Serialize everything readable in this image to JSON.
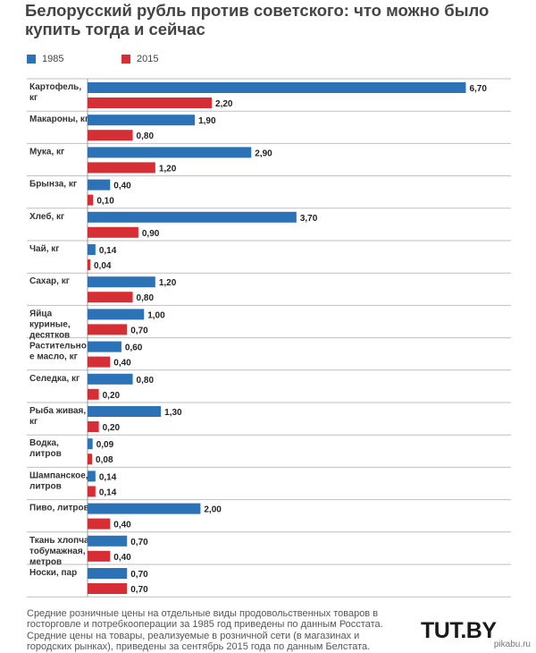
{
  "title": "Белорусский рубль против советского: что можно было купить тогда и сейчас",
  "legend": [
    {
      "label": "1985",
      "color": "#2b72b7"
    },
    {
      "label": "2015",
      "color": "#d62e35"
    }
  ],
  "chart_data": {
    "type": "bar",
    "orientation": "horizontal",
    "title": "Белорусский рубль против советского: что можно было купить тогда и сейчас",
    "categories": [
      [
        "Картофель,",
        "кг"
      ],
      [
        "Макароны, кг"
      ],
      [
        "Мука, кг"
      ],
      [
        "Брынза, кг"
      ],
      [
        "Хлеб, кг"
      ],
      [
        "Чай, кг"
      ],
      [
        "Сахар, кг"
      ],
      [
        "Яйца",
        "куриные,",
        "десятков"
      ],
      [
        "Растительно",
        "е масло, кг"
      ],
      [
        "Селедка, кг"
      ],
      [
        "Рыба живая,",
        "кг"
      ],
      [
        "Водка,",
        "литров"
      ],
      [
        "Шампанское,",
        "литров"
      ],
      [
        "Пиво, литров"
      ],
      [
        "Ткань хлопча",
        "тобумажная,",
        "метров"
      ],
      [
        "Носки, пар"
      ]
    ],
    "series": [
      {
        "name": "1985",
        "color": "#2b72b7",
        "values": [
          6.7,
          1.9,
          2.9,
          0.4,
          3.7,
          0.14,
          1.2,
          1.0,
          0.6,
          0.8,
          1.3,
          0.09,
          0.14,
          2.0,
          0.7,
          0.7
        ],
        "labels": [
          "6,70",
          "1,90",
          "2,90",
          "0,40",
          "3,70",
          "0,14",
          "1,20",
          "1,00",
          "0,60",
          "0,80",
          "1,30",
          "0,09",
          "0,14",
          "2,00",
          "0,70",
          "0,70"
        ]
      },
      {
        "name": "2015",
        "color": "#d62e35",
        "values": [
          2.2,
          0.8,
          1.2,
          0.1,
          0.9,
          0.04,
          0.8,
          0.7,
          0.4,
          0.2,
          0.2,
          0.08,
          0.14,
          0.4,
          0.4,
          0.7
        ],
        "labels": [
          "2,20",
          "0,80",
          "1,20",
          "0,10",
          "0,90",
          "0,04",
          "0,80",
          "0,70",
          "0,40",
          "0,20",
          "0,20",
          "0,08",
          "0,14",
          "0,40",
          "0,40",
          "0,70"
        ]
      }
    ],
    "xlim": [
      0,
      6.9
    ],
    "grid": false,
    "legend_position": "top-left"
  },
  "footnote": [
    "Средние розничные цены на отдельные виды продовольственных товаров в",
    "госторговле и потребкооперации за 1985 год приведены по данным Росстата.",
    "Средние цены на товары, реализуемые в розничной сети (в магазинах и",
    "городских рынках), приведены за сентябрь 2015 года по данным Белстата."
  ],
  "logo": "TUT.BY",
  "watermark": "pikabu.ru"
}
